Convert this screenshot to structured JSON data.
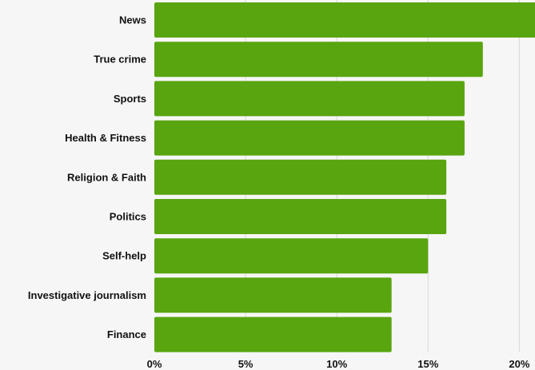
{
  "chart_data": {
    "type": "bar",
    "orientation": "horizontal",
    "categories": [
      "News",
      "True crime",
      "Sports",
      "Health & Fitness",
      "Religion & Faith",
      "Politics",
      "Self-help",
      "Investigative journalism",
      "Finance"
    ],
    "values": [
      21,
      18,
      17,
      17,
      16,
      16,
      15,
      13,
      13
    ],
    "unit": "%",
    "xlim": [
      0,
      21
    ],
    "xticks": [
      0,
      5,
      10,
      15,
      20
    ],
    "xtick_labels": [
      "0%",
      "5%",
      "10%",
      "15%",
      "20%"
    ],
    "grid": "vertical",
    "title": "",
    "xlabel": "",
    "ylabel": "",
    "colors": {
      "bar": "#58a50f",
      "background": "#f6f6f6",
      "grid": "#d9d9d9",
      "text": "#111111"
    }
  }
}
